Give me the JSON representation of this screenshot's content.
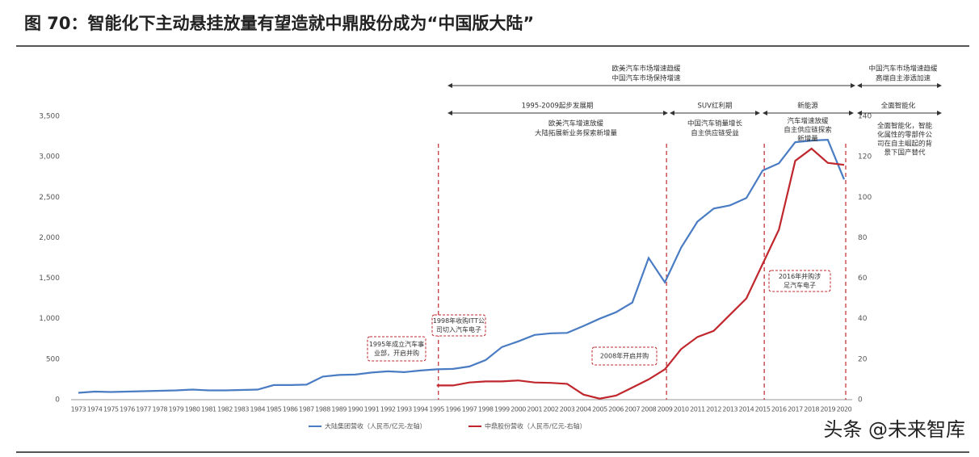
{
  "title": "图 70：智能化下主动悬挂放量有望造就中鼎股份成为“中国版大陆”",
  "watermark": "头条 @未来智库",
  "chart_data": {
    "type": "line",
    "categories": [
      "1973",
      "1974",
      "1975",
      "1976",
      "1977",
      "1978",
      "1979",
      "1980",
      "1981",
      "1982",
      "1983",
      "1984",
      "1985",
      "1986",
      "1987",
      "1988",
      "1989",
      "1990",
      "1991",
      "1992",
      "1993",
      "1994",
      "1995",
      "1996",
      "1997",
      "1998",
      "1999",
      "2000",
      "2001",
      "2002",
      "2003",
      "2004",
      "2005",
      "2006",
      "2007",
      "2008",
      "2009",
      "2010",
      "2011",
      "2012",
      "2013",
      "2014",
      "2015",
      "2016",
      "2017",
      "2018",
      "2019",
      "2020"
    ],
    "series": [
      {
        "name": "大陆集团营收（人民币/亿元-左轴）",
        "color": "#4a7cc4",
        "axis": "y",
        "values": [
          85,
          100,
          95,
          100,
          105,
          110,
          115,
          125,
          115,
          115,
          120,
          125,
          180,
          180,
          185,
          285,
          305,
          310,
          335,
          350,
          340,
          360,
          375,
          380,
          410,
          490,
          650,
          720,
          800,
          820,
          825,
          910,
          1000,
          1080,
          1200,
          1750,
          1450,
          1880,
          2200,
          2360,
          2400,
          2490,
          2830,
          2920,
          3180,
          3200,
          3210,
          2720
        ]
      },
      {
        "name": "中鼎股份营收（人民币/亿元-右轴）",
        "color": "#c0272d",
        "axis": "y2",
        "values": [
          null,
          null,
          null,
          null,
          null,
          null,
          null,
          null,
          null,
          null,
          null,
          null,
          null,
          null,
          null,
          null,
          null,
          null,
          null,
          null,
          null,
          null,
          7,
          7,
          8.5,
          9,
          9,
          9.5,
          8.5,
          8.3,
          7.8,
          2.5,
          0.5,
          2,
          6,
          10,
          15,
          25,
          31,
          34,
          42,
          50,
          67,
          84,
          118,
          124,
          117,
          116
        ]
      }
    ],
    "ylim": [
      0,
      3500
    ],
    "yticks": [
      0,
      500,
      {
        "value": 1000,
        "label": "1,000"
      },
      {
        "value": 1500,
        "label": "1,500"
      },
      {
        "value": 2000,
        "label": "2,000"
      },
      {
        "value": 2500,
        "label": "2,500"
      },
      {
        "value": 3000,
        "label": "3,000"
      },
      {
        "value": 3500,
        "label": "3,500"
      }
    ],
    "y2lim": [
      0,
      140
    ],
    "y2ticks": [
      0,
      20,
      40,
      60,
      80,
      100,
      120,
      140
    ],
    "legend": "bottom",
    "annotations": [
      {
        "lines": [
          "欧美汽车市场增速趋缓",
          "中国汽车市场保持增速"
        ]
      },
      {
        "lines": [
          "中国汽车市场增速趋缓",
          "高端自主渗透加速"
        ]
      },
      {
        "lines": [
          "1995-2009起步发展期"
        ]
      },
      {
        "lines": [
          "SUV红利期"
        ]
      },
      {
        "lines": [
          "新能源"
        ]
      },
      {
        "lines": [
          "全面智能化"
        ]
      },
      {
        "lines": [
          "欧美汽车增速放缓",
          "大陆拓展新业务探索新增量"
        ]
      },
      {
        "lines": [
          "中国汽车销量增长",
          "自主供应链受益"
        ]
      },
      {
        "lines": [
          "汽车增速放缓",
          "自主供应链探索",
          "新增量"
        ]
      },
      {
        "lines": [
          "全面智能化，智能",
          "化属性的零部件公",
          "司在自主崛起的背",
          "景下国产替代"
        ]
      }
    ],
    "callouts": [
      {
        "lines": [
          "1995年成立汽车事",
          "业部，开启并购"
        ]
      },
      {
        "lines": [
          "1998年收购ITT公",
          "司切入汽车电子"
        ]
      },
      {
        "lines": [
          "2008年开启并购"
        ]
      },
      {
        "lines": [
          "2016年并购涉",
          "足汽车电子"
        ]
      }
    ]
  }
}
